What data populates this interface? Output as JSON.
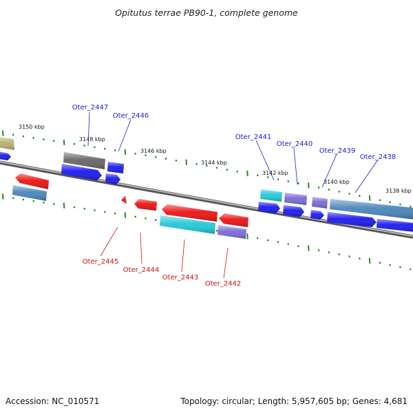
{
  "title": "Opitutus terrae PB90-1, complete genome",
  "footer": {
    "accession": "Accession: NC_010571",
    "summary": "Topology: circular; Length: 5,957,605 bp; Genes: 4,681"
  },
  "colors": {
    "upper_label": "#1a1ad6",
    "lower_label": "#cc1111",
    "backbone": "#8a8a8a",
    "tick": "#1e8a1e",
    "blue": "#1a1aef",
    "red": "#ee1111",
    "steel": "#4a86b8",
    "cyan": "#22c8d8",
    "purple": "#7a6ad8",
    "gray": "#666666",
    "olive": "#b8b070"
  },
  "scale_labels": [
    "3150 kbp",
    "3148 kbp",
    "3146 kbp",
    "3144 kbp",
    "3142 kbp",
    "3140 kbp",
    "3138 kbp"
  ],
  "upper_genes": [
    {
      "name": "Oter_2447",
      "color": "gray"
    },
    {
      "name": "Oter_2446",
      "color": "blue"
    },
    {
      "name": "Oter_2441",
      "color": "cyan"
    },
    {
      "name": "Oter_2440",
      "color": "purple"
    },
    {
      "name": "Oter_2439",
      "color": "purple"
    },
    {
      "name": "Oter_2438",
      "color": "steel"
    }
  ],
  "lower_genes": [
    {
      "name": "Oter_2445",
      "color": "red"
    },
    {
      "name": "Oter_2444",
      "color": "red"
    },
    {
      "name": "Oter_2443",
      "color": "cyan"
    },
    {
      "name": "Oter_2442",
      "color": "purple"
    }
  ]
}
